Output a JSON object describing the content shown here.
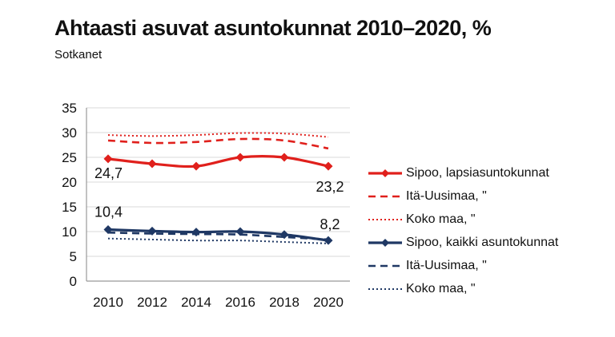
{
  "header": {
    "title": "Ahtaasti asuvat asuntokunnat 2010–2020, %",
    "subtitle": "Sotkanet"
  },
  "chart_data": {
    "type": "line",
    "title": "Ahtaasti asuvat asuntokunnat 2010–2020, %",
    "subtitle": "Sotkanet",
    "x": [
      2010,
      2012,
      2014,
      2016,
      2018,
      2020
    ],
    "x_tick_labels": [
      "2010",
      "2012",
      "2014",
      "2016",
      "2018",
      "2020"
    ],
    "ylim": [
      0,
      35
    ],
    "yticks": [
      0,
      5,
      10,
      15,
      20,
      25,
      30,
      35
    ],
    "ytick_labels": [
      "0",
      "5",
      "10",
      "15",
      "20",
      "25",
      "30",
      "35"
    ],
    "grid": "horizontal",
    "legend_position": "right",
    "colors": {
      "red": "#e0201c",
      "navy": "#1f3864",
      "gridline": "#d9d9d9",
      "axis": "#999999",
      "text": "#111111"
    },
    "series": [
      {
        "name": "Sipoo, lapsiasuntokunnat",
        "color": "#e0201c",
        "style": "solid",
        "marker": "diamond",
        "values": [
          24.7,
          23.7,
          23.2,
          25.0,
          25.0,
          23.2
        ]
      },
      {
        "name": "Itä-Uusimaa, \"",
        "color": "#e0201c",
        "style": "dashed",
        "marker": "none",
        "values": [
          28.4,
          27.9,
          28.1,
          28.7,
          28.4,
          26.8
        ]
      },
      {
        "name": "Koko maa, \"",
        "color": "#e0201c",
        "style": "dotted",
        "marker": "none",
        "values": [
          29.5,
          29.3,
          29.5,
          29.9,
          29.8,
          29.1
        ]
      },
      {
        "name": "Sipoo, kaikki asuntokunnat",
        "color": "#1f3864",
        "style": "solid",
        "marker": "diamond",
        "values": [
          10.4,
          10.1,
          9.9,
          10.0,
          9.4,
          8.2
        ]
      },
      {
        "name": "Itä-Uusimaa, \"",
        "color": "#1f3864",
        "style": "dashed",
        "marker": "none",
        "values": [
          9.8,
          9.6,
          9.5,
          9.4,
          8.9,
          8.4
        ]
      },
      {
        "name": "Koko maa, \"",
        "color": "#1f3864",
        "style": "dotted",
        "marker": "none",
        "values": [
          8.6,
          8.4,
          8.2,
          8.2,
          7.9,
          7.6
        ]
      }
    ],
    "annotations": [
      {
        "series": 0,
        "point": 0,
        "text": "24,7",
        "placement": "below-left"
      },
      {
        "series": 0,
        "point": 5,
        "text": "23,2",
        "placement": "below"
      },
      {
        "series": 3,
        "point": 0,
        "text": "10,4",
        "placement": "above-left"
      },
      {
        "series": 3,
        "point": 5,
        "text": "8,2",
        "placement": "above"
      }
    ]
  }
}
